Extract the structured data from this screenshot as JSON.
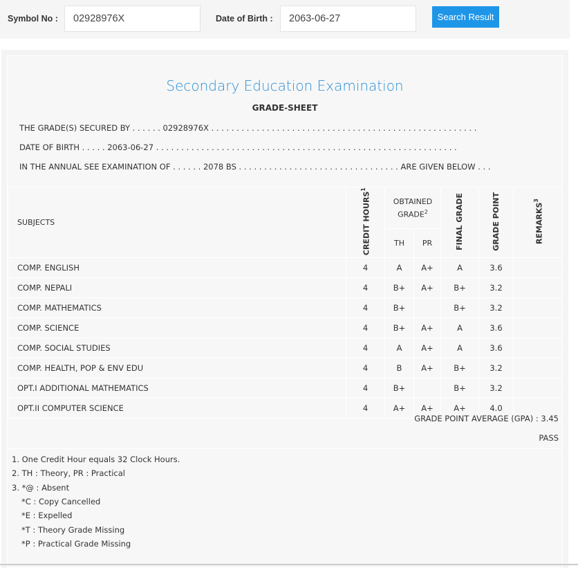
{
  "search": {
    "symbol_label": "Symbol No :",
    "symbol_value": "02928976X",
    "dob_label": "Date of Birth :",
    "dob_value": "2063-06-27",
    "button": "Search Result"
  },
  "sheet": {
    "title": "Secondary Education Examination",
    "subtitle": "GRADE-SHEET",
    "line1": "THE GRADE(S) SECURED BY . . . . . . 02928976X . . . . . . . . . . . . . . . . . . . . . . . . . . . . . . . . . . . . . . . . . . . . . . . . . . . . .",
    "line2": "DATE OF BIRTH . . . . . 2063-06-27 . . . . . . . . . . . . . . . . . . . . . . . . . . . . . . . . . . . . . . . . . . . . . . . . . . . . . . . . . . . .",
    "line3": "IN THE ANNUAL SEE EXAMINATION OF . . . . . . 2078 BS . . . . . . . . . . . . . . . . . . . . . . . . . . . . . . . . ARE GIVEN BELOW . . ."
  },
  "table": {
    "headers": {
      "subjects": "SUBJECTS",
      "credit": "CREDIT HOURS",
      "credit_sup": "1",
      "obtained": "OBTAINED GRADE",
      "obtained_sup": "2",
      "th": "TH",
      "pr": "PR",
      "final": "FINAL GRADE",
      "point": "GRADE POINT",
      "remarks": "REMARKS",
      "remarks_sup": "3"
    },
    "rows": [
      {
        "subject": "COMP. ENGLISH",
        "credit": "4",
        "th": "A",
        "pr": "A+",
        "final": "A",
        "point": "3.6",
        "remarks": ""
      },
      {
        "subject": "COMP. NEPALI",
        "credit": "4",
        "th": "B+",
        "pr": "A+",
        "final": "B+",
        "point": "3.2",
        "remarks": ""
      },
      {
        "subject": "COMP. MATHEMATICS",
        "credit": "4",
        "th": "B+",
        "pr": "",
        "final": "B+",
        "point": "3.2",
        "remarks": ""
      },
      {
        "subject": "COMP. SCIENCE",
        "credit": "4",
        "th": "B+",
        "pr": "A+",
        "final": "A",
        "point": "3.6",
        "remarks": ""
      },
      {
        "subject": "COMP. SOCIAL STUDIES",
        "credit": "4",
        "th": "A",
        "pr": "A+",
        "final": "A",
        "point": "3.6",
        "remarks": ""
      },
      {
        "subject": "COMP. HEALTH, POP & ENV EDU",
        "credit": "4",
        "th": "B",
        "pr": "A+",
        "final": "B+",
        "point": "3.2",
        "remarks": ""
      },
      {
        "subject": "OPT.I ADDITIONAL MATHEMATICS",
        "credit": "4",
        "th": "B+",
        "pr": "",
        "final": "B+",
        "point": "3.2",
        "remarks": ""
      },
      {
        "subject": "OPT.II COMPUTER SCIENCE",
        "credit": "4",
        "th": "A+",
        "pr": "A+",
        "final": "A+",
        "point": "4.0",
        "remarks": ""
      }
    ]
  },
  "result": {
    "gpa": "GRADE POINT AVERAGE (GPA) : 3.45",
    "status": "PASS"
  },
  "notes": [
    "1. One Credit Hour equals 32 Clock Hours.",
    "2. TH : Theory, PR : Practical",
    "3. *@ : Absent",
    "*C : Copy Cancelled",
    "*E : Expelled",
    "*T : Theory Grade Missing",
    "*P : Practical Grade Missing"
  ],
  "colors": {
    "accent": "#1e96e8",
    "title": "#2b8fd6"
  }
}
